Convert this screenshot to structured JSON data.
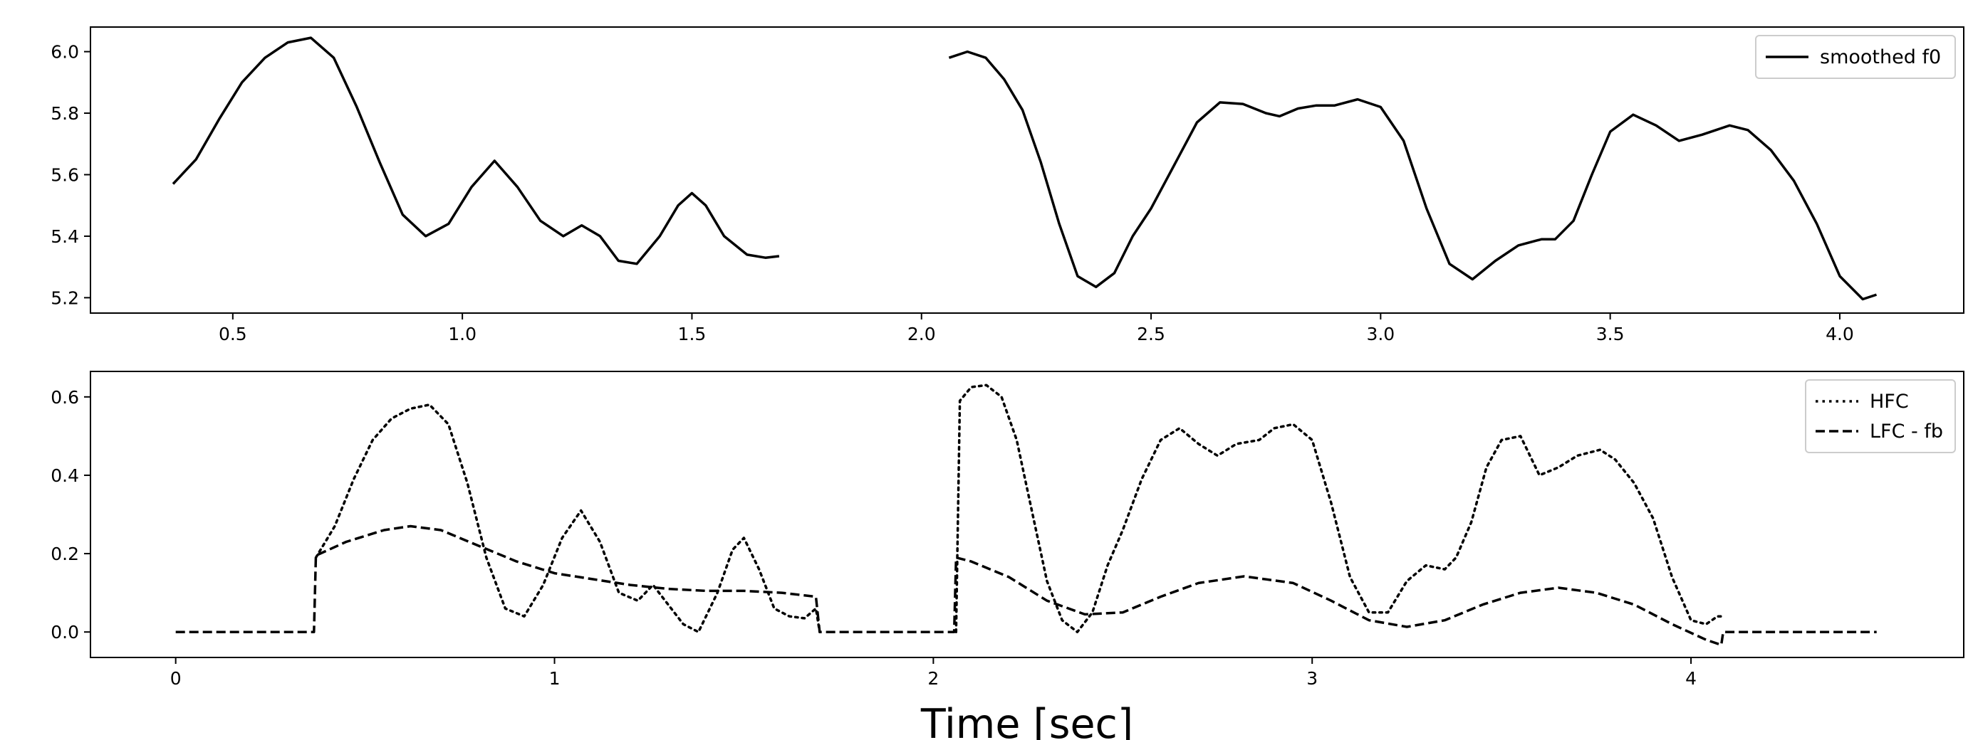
{
  "chart_data": [
    {
      "type": "line",
      "title": "",
      "xlabel": "",
      "ylabel": "",
      "xlim": [
        0.19,
        4.27
      ],
      "ylim": [
        5.15,
        6.08
      ],
      "x_ticks": [
        0.5,
        1.0,
        1.5,
        2.0,
        2.5,
        3.0,
        3.5,
        4.0
      ],
      "x_tick_labels": [
        "0.5",
        "1.0",
        "1.5",
        "2.0",
        "2.5",
        "3.0",
        "3.5",
        "4.0"
      ],
      "y_ticks": [
        5.2,
        5.4,
        5.6,
        5.8,
        6.0
      ],
      "y_tick_labels": [
        "5.2",
        "5.4",
        "5.6",
        "5.8",
        "6.0"
      ],
      "grid": false,
      "legend_position": "top-right",
      "series": [
        {
          "name": "smoothed f0",
          "style": "solid",
          "color": "#000000",
          "segments": [
            [
              [
                0.37,
                5.57
              ],
              [
                0.42,
                5.65
              ],
              [
                0.47,
                5.78
              ],
              [
                0.52,
                5.9
              ],
              [
                0.57,
                5.98
              ],
              [
                0.62,
                6.03
              ],
              [
                0.67,
                6.045
              ],
              [
                0.72,
                5.98
              ],
              [
                0.77,
                5.82
              ],
              [
                0.82,
                5.64
              ],
              [
                0.87,
                5.47
              ],
              [
                0.92,
                5.4
              ],
              [
                0.97,
                5.44
              ],
              [
                1.02,
                5.56
              ],
              [
                1.07,
                5.645
              ],
              [
                1.12,
                5.56
              ],
              [
                1.17,
                5.45
              ],
              [
                1.22,
                5.4
              ],
              [
                1.26,
                5.435
              ],
              [
                1.3,
                5.4
              ],
              [
                1.34,
                5.32
              ],
              [
                1.38,
                5.31
              ],
              [
                1.43,
                5.4
              ],
              [
                1.47,
                5.5
              ],
              [
                1.5,
                5.54
              ],
              [
                1.53,
                5.5
              ],
              [
                1.57,
                5.4
              ],
              [
                1.62,
                5.34
              ],
              [
                1.66,
                5.33
              ],
              [
                1.69,
                5.335
              ]
            ],
            [
              [
                2.06,
                5.98
              ],
              [
                2.1,
                6.0
              ],
              [
                2.14,
                5.98
              ],
              [
                2.18,
                5.91
              ],
              [
                2.22,
                5.81
              ],
              [
                2.26,
                5.64
              ],
              [
                2.3,
                5.44
              ],
              [
                2.34,
                5.27
              ],
              [
                2.38,
                5.235
              ],
              [
                2.42,
                5.28
              ],
              [
                2.46,
                5.4
              ],
              [
                2.5,
                5.49
              ],
              [
                2.55,
                5.63
              ],
              [
                2.6,
                5.77
              ],
              [
                2.65,
                5.835
              ],
              [
                2.7,
                5.83
              ],
              [
                2.75,
                5.8
              ],
              [
                2.78,
                5.79
              ],
              [
                2.82,
                5.815
              ],
              [
                2.86,
                5.825
              ],
              [
                2.9,
                5.825
              ],
              [
                2.95,
                5.845
              ],
              [
                3.0,
                5.82
              ],
              [
                3.05,
                5.71
              ],
              [
                3.1,
                5.49
              ],
              [
                3.15,
                5.31
              ],
              [
                3.2,
                5.26
              ],
              [
                3.25,
                5.32
              ],
              [
                3.3,
                5.37
              ],
              [
                3.35,
                5.39
              ],
              [
                3.38,
                5.39
              ],
              [
                3.42,
                5.45
              ],
              [
                3.46,
                5.6
              ],
              [
                3.5,
                5.74
              ],
              [
                3.55,
                5.795
              ],
              [
                3.6,
                5.76
              ],
              [
                3.65,
                5.71
              ],
              [
                3.7,
                5.73
              ],
              [
                3.76,
                5.76
              ],
              [
                3.8,
                5.745
              ],
              [
                3.85,
                5.68
              ],
              [
                3.9,
                5.58
              ],
              [
                3.95,
                5.44
              ],
              [
                4.0,
                5.27
              ],
              [
                4.05,
                5.195
              ],
              [
                4.08,
                5.21
              ]
            ]
          ]
        }
      ]
    },
    {
      "type": "line",
      "title": "",
      "xlabel": "Time [sec]",
      "ylabel": "",
      "xlim": [
        -0.225,
        4.72
      ],
      "ylim": [
        -0.065,
        0.665
      ],
      "x_ticks": [
        0,
        1,
        2,
        3,
        4
      ],
      "x_tick_labels": [
        "0",
        "1",
        "2",
        "3",
        "4"
      ],
      "y_ticks": [
        0.0,
        0.2,
        0.4,
        0.6
      ],
      "y_tick_labels": [
        "0.0",
        "0.2",
        "0.4",
        "0.6"
      ],
      "grid": false,
      "legend_position": "top-right",
      "series": [
        {
          "name": "HFC",
          "style": "dotted",
          "color": "#000000",
          "points": [
            [
              0.37,
              0.19
            ],
            [
              0.42,
              0.27
            ],
            [
              0.47,
              0.39
            ],
            [
              0.52,
              0.49
            ],
            [
              0.57,
              0.545
            ],
            [
              0.62,
              0.57
            ],
            [
              0.67,
              0.58
            ],
            [
              0.72,
              0.53
            ],
            [
              0.77,
              0.38
            ],
            [
              0.82,
              0.19
            ],
            [
              0.87,
              0.06
            ],
            [
              0.92,
              0.04
            ],
            [
              0.97,
              0.12
            ],
            [
              1.02,
              0.24
            ],
            [
              1.07,
              0.31
            ],
            [
              1.12,
              0.23
            ],
            [
              1.17,
              0.1
            ],
            [
              1.22,
              0.08
            ],
            [
              1.26,
              0.12
            ],
            [
              1.3,
              0.07
            ],
            [
              1.34,
              0.02
            ],
            [
              1.38,
              0.0
            ],
            [
              1.43,
              0.1
            ],
            [
              1.47,
              0.21
            ],
            [
              1.5,
              0.24
            ],
            [
              1.54,
              0.16
            ],
            [
              1.58,
              0.06
            ],
            [
              1.62,
              0.04
            ],
            [
              1.66,
              0.035
            ],
            [
              1.69,
              0.06
            ],
            [
              1.7,
              0.0
            ]
          ],
          "segments_extra": [
            [
              [
                2.06,
                0.0
              ],
              [
                2.07,
                0.59
              ],
              [
                2.1,
                0.625
              ],
              [
                2.14,
                0.63
              ],
              [
                2.18,
                0.6
              ],
              [
                2.22,
                0.49
              ],
              [
                2.26,
                0.31
              ],
              [
                2.3,
                0.13
              ],
              [
                2.34,
                0.03
              ],
              [
                2.38,
                0.0
              ],
              [
                2.42,
                0.05
              ],
              [
                2.46,
                0.17
              ],
              [
                2.5,
                0.26
              ],
              [
                2.55,
                0.39
              ],
              [
                2.6,
                0.49
              ],
              [
                2.65,
                0.52
              ],
              [
                2.7,
                0.48
              ],
              [
                2.75,
                0.45
              ],
              [
                2.8,
                0.48
              ],
              [
                2.86,
                0.49
              ],
              [
                2.9,
                0.52
              ],
              [
                2.95,
                0.53
              ],
              [
                3.0,
                0.49
              ],
              [
                3.05,
                0.33
              ],
              [
                3.1,
                0.14
              ],
              [
                3.15,
                0.05
              ],
              [
                3.2,
                0.05
              ],
              [
                3.25,
                0.13
              ],
              [
                3.3,
                0.17
              ],
              [
                3.35,
                0.16
              ],
              [
                3.38,
                0.19
              ],
              [
                3.42,
                0.28
              ],
              [
                3.46,
                0.42
              ],
              [
                3.5,
                0.49
              ],
              [
                3.55,
                0.5
              ],
              [
                3.6,
                0.4
              ],
              [
                3.65,
                0.42
              ],
              [
                3.7,
                0.45
              ],
              [
                3.76,
                0.465
              ],
              [
                3.8,
                0.44
              ],
              [
                3.85,
                0.38
              ],
              [
                3.9,
                0.29
              ],
              [
                3.95,
                0.14
              ],
              [
                4.0,
                0.03
              ],
              [
                4.04,
                0.02
              ],
              [
                4.07,
                0.04
              ],
              [
                4.08,
                0.04
              ]
            ]
          ]
        },
        {
          "name": "LFC - fb",
          "style": "dashed",
          "color": "#000000",
          "segments": [
            [
              [
                0.0,
                0.0
              ],
              [
                0.365,
                0.0
              ],
              [
                0.37,
                0.195
              ],
              [
                0.45,
                0.23
              ],
              [
                0.55,
                0.26
              ],
              [
                0.62,
                0.27
              ],
              [
                0.7,
                0.26
              ],
              [
                0.8,
                0.22
              ],
              [
                0.9,
                0.18
              ],
              [
                1.0,
                0.15
              ],
              [
                1.1,
                0.135
              ],
              [
                1.2,
                0.12
              ],
              [
                1.3,
                0.11
              ],
              [
                1.4,
                0.105
              ],
              [
                1.5,
                0.105
              ],
              [
                1.6,
                0.1
              ],
              [
                1.69,
                0.09
              ],
              [
                1.7,
                0.0
              ],
              [
                2.055,
                0.0
              ],
              [
                2.06,
                0.19
              ],
              [
                2.1,
                0.18
              ],
              [
                2.2,
                0.14
              ],
              [
                2.3,
                0.08
              ],
              [
                2.4,
                0.045
              ],
              [
                2.5,
                0.05
              ],
              [
                2.6,
                0.09
              ],
              [
                2.7,
                0.125
              ],
              [
                2.82,
                0.142
              ],
              [
                2.95,
                0.125
              ],
              [
                3.05,
                0.08
              ],
              [
                3.15,
                0.03
              ],
              [
                3.25,
                0.013
              ],
              [
                3.35,
                0.03
              ],
              [
                3.45,
                0.07
              ],
              [
                3.55,
                0.1
              ],
              [
                3.65,
                0.113
              ],
              [
                3.75,
                0.1
              ],
              [
                3.85,
                0.07
              ],
              [
                3.95,
                0.02
              ],
              [
                4.04,
                -0.02
              ],
              [
                4.08,
                -0.033
              ],
              [
                4.085,
                0.0
              ],
              [
                4.49,
                0.0
              ]
            ]
          ]
        }
      ]
    }
  ]
}
